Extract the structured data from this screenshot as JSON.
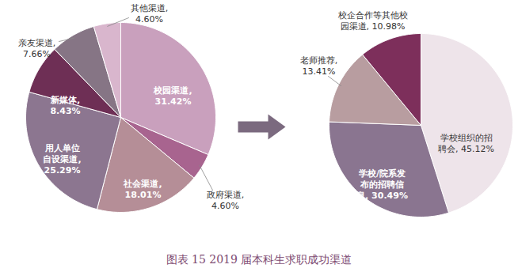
{
  "caption": "图表 15 2019 届本科生求职成功渠道",
  "chart_data": [
    {
      "type": "pie",
      "categories": [
        "校园渠道,",
        "政府渠道,",
        "社会渠道,",
        "用人单位自设渠道,",
        "新媒体,",
        "亲友渠道,",
        "其他渠道,"
      ],
      "values": [
        31.42,
        4.6,
        18.01,
        25.29,
        8.43,
        7.66,
        4.6
      ],
      "value_labels": [
        "31.42%",
        "4.60%",
        "18.01%",
        "25.29%",
        "8.43%",
        "7.66%",
        "4.60%"
      ],
      "colors": [
        "#c9a0bd",
        "#a8648f",
        "#b58e97",
        "#8c7690",
        "#6e2f55",
        "#867585",
        "#d9b6cd"
      ],
      "data_labels": true
    },
    {
      "type": "pie",
      "categories": [
        "学校组织的招聘会,",
        "学校/院系发布的招聘信息,",
        "老师推荐,",
        "校企合作等其他校园渠道,"
      ],
      "values": [
        45.12,
        30.49,
        13.41,
        10.98
      ],
      "value_labels": [
        "45.12%",
        "30.49%",
        "13.41%",
        "10.98%"
      ],
      "colors": [
        "#eee4ea",
        "#8a7590",
        "#b89d a0",
        "#7d2f5b"
      ],
      "data_labels": true
    }
  ]
}
